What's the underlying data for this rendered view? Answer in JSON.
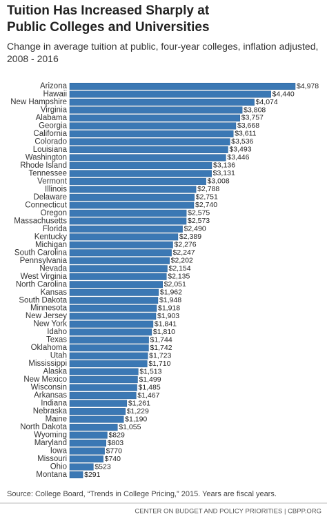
{
  "chart_data": {
    "type": "bar",
    "orientation": "horizontal",
    "title": "Tuition Has Increased Sharply at Public Colleges and Universities",
    "subtitle": "Change in average tuition at public, four-year colleges, inflation adjusted, 2008 - 2016",
    "categories": [
      "Arizona",
      "Hawaii",
      "New Hampshire",
      "Virginia",
      "Alabama",
      "Georgia",
      "California",
      "Colorado",
      "Louisiana",
      "Washington",
      "Rhode Island",
      "Tennessee",
      "Vermont",
      "Illinois",
      "Delaware",
      "Connecticut",
      "Oregon",
      "Massachusetts",
      "Florida",
      "Kentucky",
      "Michigan",
      "South Carolina",
      "Pennsylvania",
      "Nevada",
      "West Virginia",
      "North Carolina",
      "Kansas",
      "South Dakota",
      "Minnesota",
      "New Jersey",
      "New York",
      "Idaho",
      "Texas",
      "Oklahoma",
      "Utah",
      "Mississippi",
      "Alaska",
      "New Mexico",
      "Wisconsin",
      "Arkansas",
      "Indiana",
      "Nebraska",
      "Maine",
      "North Dakota",
      "Wyoming",
      "Maryland",
      "Iowa",
      "Missouri",
      "Ohio",
      "Montana"
    ],
    "values": [
      4978,
      4440,
      4074,
      3808,
      3757,
      3668,
      3611,
      3536,
      3493,
      3446,
      3136,
      3131,
      3008,
      2788,
      2751,
      2740,
      2575,
      2573,
      2490,
      2389,
      2276,
      2247,
      2202,
      2154,
      2135,
      2051,
      1962,
      1948,
      1918,
      1903,
      1841,
      1810,
      1744,
      1742,
      1723,
      1710,
      1513,
      1499,
      1485,
      1467,
      1261,
      1229,
      1190,
      1055,
      829,
      803,
      770,
      740,
      523,
      291
    ],
    "value_labels": [
      "$4,978",
      "$4,440",
      "$4,074",
      "$3,808",
      "$3,757",
      "$3,668",
      "$3,611",
      "$3,536",
      "$3,493",
      "$3,446",
      "$3,136",
      "$3,131",
      "$3,008",
      "$2,788",
      "$2,751",
      "$2,740",
      "$2,575",
      "$2,573",
      "$2,490",
      "$2,389",
      "$2,276",
      "$2,247",
      "$2,202",
      "$2,154",
      "$2,135",
      "$2,051",
      "$1,962",
      "$1,948",
      "$1,918",
      "$1,903",
      "$1,841",
      "$1,810",
      "$1,744",
      "$1,742",
      "$1,723",
      "$1,710",
      "$1,513",
      "$1,499",
      "$1,485",
      "$1,467",
      "$1,261",
      "$1,229",
      "$1,190",
      "$1,055",
      "$829",
      "$803",
      "$770",
      "$740",
      "$523",
      "$291"
    ],
    "color": "#3b78b4",
    "source": "Source: College Board, “Trends in College Pricing,” 2015. Years are fiscal years.",
    "footer": "CENTER ON BUDGET AND POLICY PRIORITIES | CBPP.ORG"
  }
}
